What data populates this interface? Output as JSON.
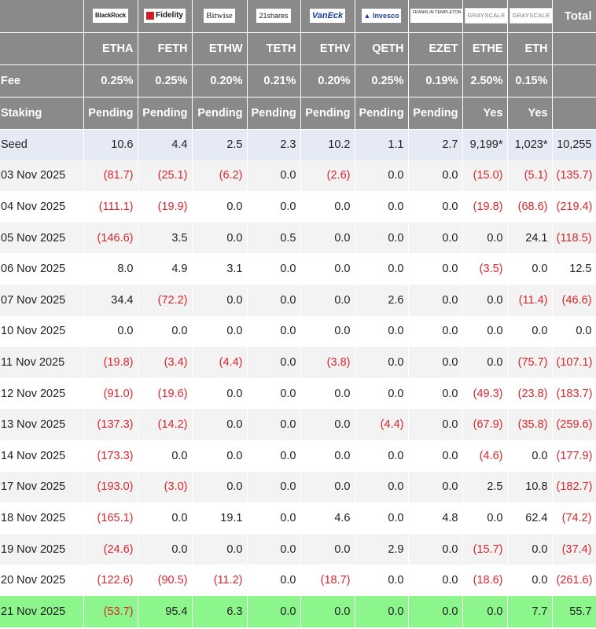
{
  "logos": [
    {
      "icon": "blackrock-logo",
      "text": "BlackRock"
    },
    {
      "icon": "fidelity-logo",
      "text": "Fidelity"
    },
    {
      "icon": "bitwise-logo",
      "text": "Bitwise"
    },
    {
      "icon": "21shares-logo",
      "text": "21shares"
    },
    {
      "icon": "vaneck-logo",
      "text": "VanEck"
    },
    {
      "icon": "invesco-logo",
      "text": "Invesco"
    },
    {
      "icon": "franklin-templeton-logo",
      "text": "FRANKLIN TEMPLETON"
    },
    {
      "icon": "grayscale-logo",
      "text": "GRAYSCALE"
    },
    {
      "icon": "grayscale-logo",
      "text": "GRAYSCALE"
    }
  ],
  "total_header": "Total",
  "tickers": [
    "ETHA",
    "FETH",
    "ETHW",
    "TETH",
    "ETHV",
    "QETH",
    "EZET",
    "ETHE",
    "ETH"
  ],
  "fee": {
    "label": "Fee",
    "values": [
      "0.25%",
      "0.25%",
      "0.20%",
      "0.21%",
      "0.20%",
      "0.25%",
      "0.19%",
      "2.50%",
      "0.15%"
    ]
  },
  "staking": {
    "label": "Staking",
    "values": [
      "Pending",
      "Pending",
      "Pending",
      "Pending",
      "Pending",
      "Pending",
      "Pending",
      "Yes",
      "Yes"
    ]
  },
  "rows": [
    {
      "label": "Seed",
      "cells": [
        "10.6",
        "4.4",
        "2.5",
        "2.3",
        "10.2",
        "1.1",
        "2.7",
        "9,199*",
        "1,023*",
        "10,255"
      ]
    },
    {
      "label": "03 Nov 2025",
      "cells": [
        "(81.7)",
        "(25.1)",
        "(6.2)",
        "0.0",
        "(2.6)",
        "0.0",
        "0.0",
        "(15.0)",
        "(5.1)",
        "(135.7)"
      ]
    },
    {
      "label": "04 Nov 2025",
      "cells": [
        "(111.1)",
        "(19.9)",
        "0.0",
        "0.0",
        "0.0",
        "0.0",
        "0.0",
        "(19.8)",
        "(68.6)",
        "(219.4)"
      ]
    },
    {
      "label": "05 Nov 2025",
      "cells": [
        "(146.6)",
        "3.5",
        "0.0",
        "0.5",
        "0.0",
        "0.0",
        "0.0",
        "0.0",
        "24.1",
        "(118.5)"
      ]
    },
    {
      "label": "06 Nov 2025",
      "cells": [
        "8.0",
        "4.9",
        "3.1",
        "0.0",
        "0.0",
        "0.0",
        "0.0",
        "(3.5)",
        "0.0",
        "12.5"
      ]
    },
    {
      "label": "07 Nov 2025",
      "cells": [
        "34.4",
        "(72.2)",
        "0.0",
        "0.0",
        "0.0",
        "2.6",
        "0.0",
        "0.0",
        "(11.4)",
        "(46.6)"
      ]
    },
    {
      "label": "10 Nov 2025",
      "cells": [
        "0.0",
        "0.0",
        "0.0",
        "0.0",
        "0.0",
        "0.0",
        "0.0",
        "0.0",
        "0.0",
        "0.0"
      ]
    },
    {
      "label": "11 Nov 2025",
      "cells": [
        "(19.8)",
        "(3.4)",
        "(4.4)",
        "0.0",
        "(3.8)",
        "0.0",
        "0.0",
        "0.0",
        "(75.7)",
        "(107.1)"
      ]
    },
    {
      "label": "12 Nov 2025",
      "cells": [
        "(91.0)",
        "(19.6)",
        "0.0",
        "0.0",
        "0.0",
        "0.0",
        "0.0",
        "(49.3)",
        "(23.8)",
        "(183.7)"
      ]
    },
    {
      "label": "13 Nov 2025",
      "cells": [
        "(137.3)",
        "(14.2)",
        "0.0",
        "0.0",
        "0.0",
        "(4.4)",
        "0.0",
        "(67.9)",
        "(35.8)",
        "(259.6)"
      ]
    },
    {
      "label": "14 Nov 2025",
      "cells": [
        "(173.3)",
        "0.0",
        "0.0",
        "0.0",
        "0.0",
        "0.0",
        "0.0",
        "(4.6)",
        "0.0",
        "(177.9)"
      ]
    },
    {
      "label": "17 Nov 2025",
      "cells": [
        "(193.0)",
        "(3.0)",
        "0.0",
        "0.0",
        "0.0",
        "0.0",
        "0.0",
        "2.5",
        "10.8",
        "(182.7)"
      ]
    },
    {
      "label": "18 Nov 2025",
      "cells": [
        "(165.1)",
        "0.0",
        "19.1",
        "0.0",
        "4.6",
        "0.0",
        "4.8",
        "0.0",
        "62.4",
        "(74.2)"
      ]
    },
    {
      "label": "19 Nov 2025",
      "cells": [
        "(24.6)",
        "0.0",
        "0.0",
        "0.0",
        "0.0",
        "2.9",
        "0.0",
        "(15.7)",
        "0.0",
        "(37.4)"
      ]
    },
    {
      "label": "20 Nov 2025",
      "cells": [
        "(122.6)",
        "(90.5)",
        "(11.2)",
        "0.0",
        "(18.7)",
        "0.0",
        "0.0",
        "(18.6)",
        "0.0",
        "(261.6)"
      ]
    },
    {
      "label": "21 Nov 2025",
      "cells": [
        "(53.7)",
        "95.4",
        "6.3",
        "0.0",
        "0.0",
        "0.0",
        "0.0",
        "0.0",
        "7.7",
        "55.7"
      ]
    }
  ],
  "colors": {
    "header_bg": "#8a8a8a",
    "negative": "#d8262c",
    "seed_bg": "#e6eaf5",
    "latest_bg": "#8cf58c"
  }
}
